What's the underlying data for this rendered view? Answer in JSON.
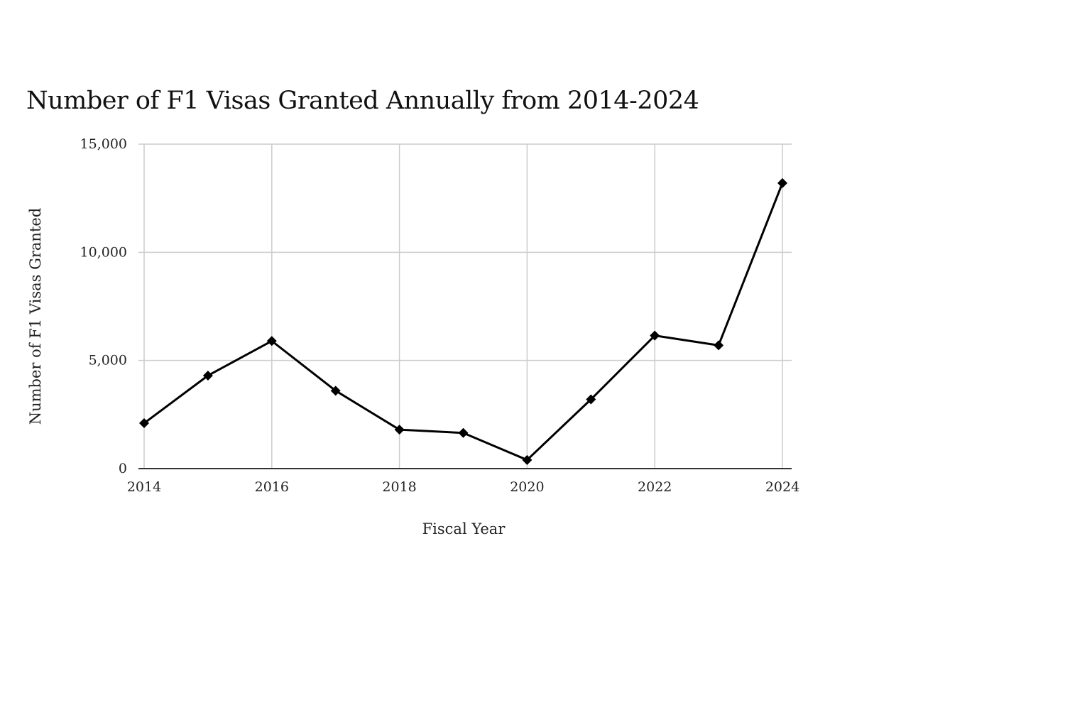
{
  "chart_data": {
    "type": "line",
    "title": "Number of F1 Visas Granted Annually from 2014-2024",
    "xlabel": "Fiscal Year",
    "ylabel": "Number of F1 Visas Granted",
    "x": [
      2014,
      2015,
      2016,
      2017,
      2018,
      2019,
      2020,
      2021,
      2022,
      2023,
      2024
    ],
    "series": [
      {
        "values": [
          2100,
          4300,
          5900,
          3600,
          1800,
          1650,
          400,
          3200,
          6150,
          5700,
          13200
        ]
      }
    ],
    "xlim": [
      2014,
      2024
    ],
    "ylim": [
      0,
      15000
    ],
    "x_ticks": [
      "2014",
      "2016",
      "2018",
      "2020",
      "2022",
      "2024"
    ],
    "y_ticks": [
      "0",
      "5,000",
      "10,000",
      "15,000"
    ],
    "grid": true,
    "legend": "none",
    "colors": {
      "line": "#000000",
      "grid": "#cccccc",
      "axis": "#333333"
    },
    "marker": "diamond"
  }
}
